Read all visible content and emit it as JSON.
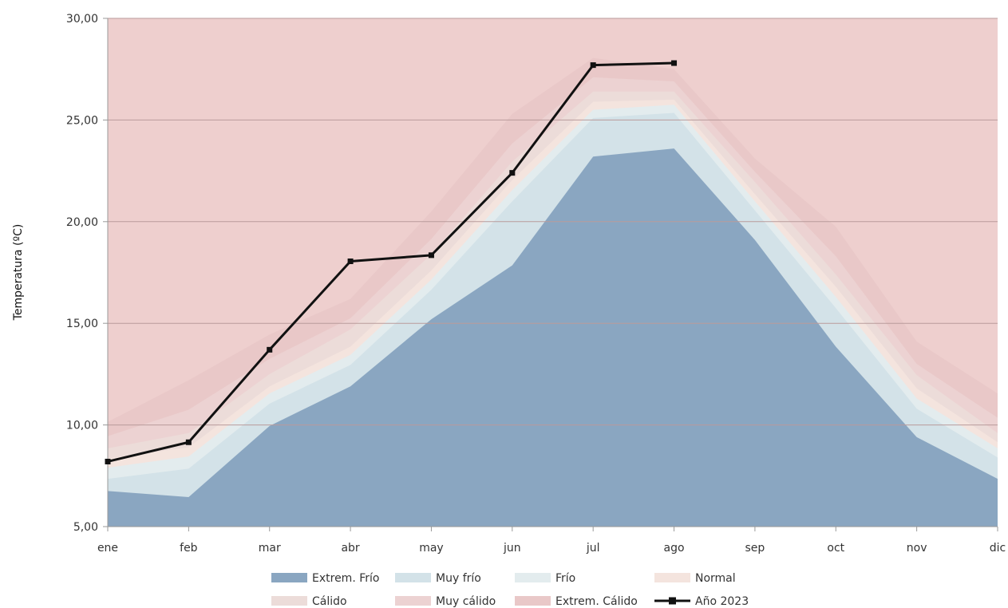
{
  "chart_data": {
    "type": "area",
    "title": "",
    "xlabel": "",
    "ylabel": "Temperatura (ºC)",
    "categories": [
      "ene",
      "feb",
      "mar",
      "abr",
      "may",
      "jun",
      "jul",
      "ago",
      "sep",
      "oct",
      "nov",
      "dic"
    ],
    "ylim": [
      5,
      30
    ],
    "yticks": [
      "5,00",
      "10,00",
      "15,00",
      "20,00",
      "25,00",
      "30,00"
    ],
    "ytick_values": [
      5,
      10,
      15,
      20,
      25,
      30
    ],
    "grid": true,
    "legend_position": "bottom",
    "bands": [
      {
        "name": "Extrem. Frío",
        "color": "#8aa6c1",
        "values": [
          6.75,
          6.45,
          9.95,
          11.9,
          15.2,
          17.85,
          23.2,
          23.6,
          19.1,
          13.85,
          9.4,
          7.35
        ]
      },
      {
        "name": "Muy frío",
        "color": "#d3e2e8",
        "values": [
          7.35,
          7.85,
          11.05,
          12.95,
          16.65,
          21.0,
          25.1,
          25.35,
          20.55,
          15.75,
          10.8,
          8.4
        ]
      },
      {
        "name": "Frío",
        "color": "#e3ecee",
        "values": [
          7.9,
          8.45,
          11.55,
          13.45,
          17.15,
          21.55,
          25.5,
          25.75,
          21.0,
          16.3,
          11.3,
          8.85
        ]
      },
      {
        "name": "Normal",
        "color": "#f4e4de",
        "values": [
          8.35,
          8.9,
          11.9,
          13.85,
          17.6,
          22.05,
          25.9,
          26.0,
          21.35,
          16.8,
          11.8,
          9.15
        ]
      },
      {
        "name": "Cálido",
        "color": "#ecdcd9",
        "values": [
          8.85,
          9.6,
          12.5,
          14.7,
          18.4,
          22.95,
          26.4,
          26.4,
          21.95,
          17.4,
          12.45,
          9.6
        ]
      },
      {
        "name": "Muy cálido",
        "color": "#ecd2d2",
        "values": [
          9.45,
          10.75,
          13.25,
          15.25,
          19.15,
          23.85,
          27.1,
          26.9,
          22.45,
          18.3,
          13.0,
          10.35
        ]
      },
      {
        "name": "Extrem. Cálido",
        "color": "#e9c8c8",
        "values": [
          10.15,
          12.2,
          14.45,
          16.2,
          20.5,
          25.3,
          28.05,
          27.5,
          23.1,
          19.75,
          14.1,
          11.55
        ]
      }
    ],
    "top_fill_color": "#eecfce",
    "series": [
      {
        "name": "Año 2023",
        "color": "#111111",
        "values": [
          8.2,
          9.15,
          13.7,
          18.05,
          18.35,
          22.4,
          27.7,
          27.8,
          null,
          null,
          null,
          null
        ]
      }
    ],
    "legend": [
      {
        "label": "Extrem. Frío",
        "color": "#8aa6c1",
        "kind": "area"
      },
      {
        "label": "Muy frío",
        "color": "#d3e2e8",
        "kind": "area"
      },
      {
        "label": "Frío",
        "color": "#e3ecee",
        "kind": "area"
      },
      {
        "label": "Normal",
        "color": "#f4e4de",
        "kind": "area"
      },
      {
        "label": "Cálido",
        "color": "#ecdcd9",
        "kind": "area"
      },
      {
        "label": "Muy cálido",
        "color": "#ecd2d2",
        "kind": "area"
      },
      {
        "label": "Extrem. Cálido",
        "color": "#e9c8c8",
        "kind": "area"
      },
      {
        "label": "Año 2023",
        "color": "#111111",
        "kind": "line"
      }
    ]
  }
}
